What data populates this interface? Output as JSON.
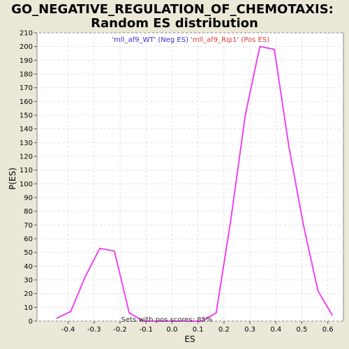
{
  "chart_data": {
    "type": "line",
    "title_lines": [
      "GO_NEGATIVE_REGULATION_OF_CHEMOTAXIS:",
      "Random ES distribution"
    ],
    "xlabel": "ES",
    "ylabel": "P(ES)",
    "xlim": [
      -0.52,
      0.66
    ],
    "ylim": [
      0,
      210
    ],
    "x_ticks": [
      -0.4,
      -0.3,
      -0.2,
      -0.1,
      0.0,
      0.1,
      0.2,
      0.3,
      0.4,
      0.5,
      0.6
    ],
    "x_tick_labels": [
      "-0.4",
      "-0.3",
      "-0.2",
      "-0.1",
      "0.0",
      "0.1",
      "0.2",
      "0.3",
      "0.4",
      "0.5",
      "0.6"
    ],
    "y_ticks": [
      0,
      10,
      20,
      30,
      40,
      50,
      60,
      70,
      80,
      90,
      100,
      110,
      120,
      130,
      140,
      150,
      160,
      170,
      180,
      190,
      200,
      210
    ],
    "grid": true,
    "legend": {
      "placement": "top-center",
      "entries": [
        {
          "label": "'mll_af9_WT' (Neg ES)",
          "color": "#3333cc"
        },
        {
          "label": "'mll_af9_Rip1' (Pos ES)",
          "color": "#e03a3a"
        }
      ]
    },
    "annotation": "Sets with pos scores: 85%",
    "series": [
      {
        "color": "#ee44ee",
        "x": [
          -0.445,
          -0.39,
          -0.335,
          -0.278,
          -0.222,
          -0.165,
          -0.11,
          -0.054,
          0.002,
          0.058,
          0.114,
          0.17,
          0.226,
          0.282,
          0.338,
          0.394,
          0.45,
          0.506,
          0.562,
          0.618
        ],
        "y": [
          2,
          7,
          32,
          53,
          51,
          6,
          0,
          0,
          0,
          0,
          0,
          6,
          73,
          150,
          200,
          198,
          127,
          70,
          22,
          4
        ]
      }
    ]
  }
}
